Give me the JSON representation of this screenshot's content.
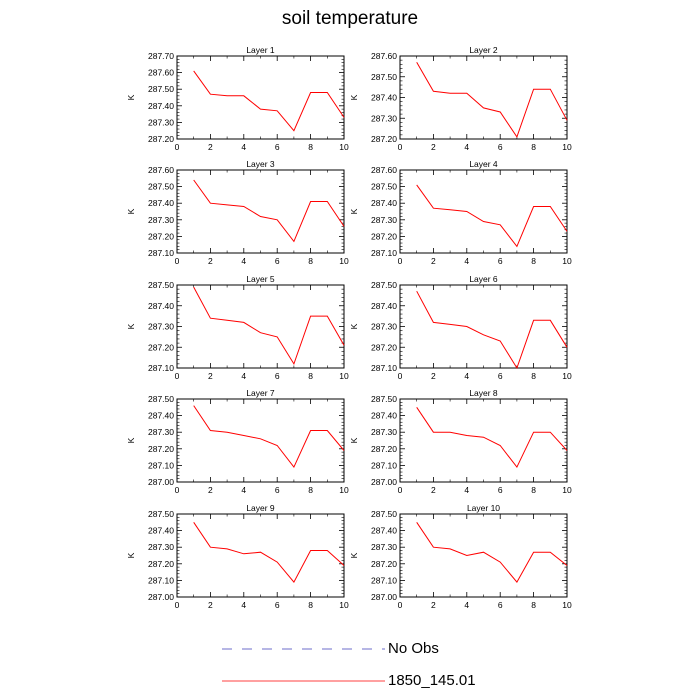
{
  "title": "soil temperature",
  "legend": {
    "items": [
      {
        "label": "No Obs",
        "color": "#3d3dbb",
        "style": "dashed"
      },
      {
        "label": "1850_145.01",
        "color": "#ff0000",
        "style": "solid"
      }
    ]
  },
  "chart_data": [
    {
      "type": "line",
      "title": "Layer 1",
      "ylabel": "K",
      "xlim": [
        0,
        10
      ],
      "ylim": [
        287.2,
        287.7
      ],
      "xticks": [
        "0",
        "2",
        "4",
        "6",
        "8",
        "10"
      ],
      "yticks": [
        "287.20",
        "287.30",
        "287.40",
        "287.50",
        "287.60",
        "287.70"
      ],
      "x": [
        1,
        2,
        3,
        4,
        5,
        6,
        7,
        8,
        9,
        10
      ],
      "series": [
        {
          "name": "1850_145.01",
          "color": "#ff0000",
          "values": [
            287.61,
            287.47,
            287.46,
            287.46,
            287.38,
            287.37,
            287.25,
            287.48,
            287.48,
            287.33
          ]
        }
      ]
    },
    {
      "type": "line",
      "title": "Layer 2",
      "ylabel": "K",
      "xlim": [
        0,
        10
      ],
      "ylim": [
        287.2,
        287.6
      ],
      "xticks": [
        "0",
        "2",
        "4",
        "6",
        "8",
        "10"
      ],
      "yticks": [
        "287.20",
        "287.30",
        "287.40",
        "287.50",
        "287.60"
      ],
      "x": [
        1,
        2,
        3,
        4,
        5,
        6,
        7,
        8,
        9,
        10
      ],
      "series": [
        {
          "name": "1850_145.01",
          "color": "#ff0000",
          "values": [
            287.57,
            287.43,
            287.42,
            287.42,
            287.35,
            287.33,
            287.21,
            287.44,
            287.44,
            287.29
          ]
        }
      ]
    },
    {
      "type": "line",
      "title": "Layer 3",
      "ylabel": "K",
      "xlim": [
        0,
        10
      ],
      "ylim": [
        287.1,
        287.6
      ],
      "xticks": [
        "0",
        "2",
        "4",
        "6",
        "8",
        "10"
      ],
      "yticks": [
        "287.10",
        "287.20",
        "287.30",
        "287.40",
        "287.50",
        "287.60"
      ],
      "x": [
        1,
        2,
        3,
        4,
        5,
        6,
        7,
        8,
        9,
        10
      ],
      "series": [
        {
          "name": "1850_145.01",
          "color": "#ff0000",
          "values": [
            287.54,
            287.4,
            287.39,
            287.38,
            287.32,
            287.3,
            287.17,
            287.41,
            287.41,
            287.26
          ]
        }
      ]
    },
    {
      "type": "line",
      "title": "Layer 4",
      "ylabel": "K",
      "xlim": [
        0,
        10
      ],
      "ylim": [
        287.1,
        287.6
      ],
      "xticks": [
        "0",
        "2",
        "4",
        "6",
        "8",
        "10"
      ],
      "yticks": [
        "287.10",
        "287.20",
        "287.30",
        "287.40",
        "287.50",
        "287.60"
      ],
      "x": [
        1,
        2,
        3,
        4,
        5,
        6,
        7,
        8,
        9,
        10
      ],
      "series": [
        {
          "name": "1850_145.01",
          "color": "#ff0000",
          "values": [
            287.51,
            287.37,
            287.36,
            287.35,
            287.29,
            287.27,
            287.14,
            287.38,
            287.38,
            287.23
          ]
        }
      ]
    },
    {
      "type": "line",
      "title": "Layer 5",
      "ylabel": "K",
      "xlim": [
        0,
        10
      ],
      "ylim": [
        287.1,
        287.5
      ],
      "xticks": [
        "0",
        "2",
        "4",
        "6",
        "8",
        "10"
      ],
      "yticks": [
        "287.10",
        "287.20",
        "287.30",
        "287.40",
        "287.50"
      ],
      "x": [
        1,
        2,
        3,
        4,
        5,
        6,
        7,
        8,
        9,
        10
      ],
      "series": [
        {
          "name": "1850_145.01",
          "color": "#ff0000",
          "values": [
            287.49,
            287.34,
            287.33,
            287.32,
            287.27,
            287.25,
            287.12,
            287.35,
            287.35,
            287.21
          ]
        }
      ]
    },
    {
      "type": "line",
      "title": "Layer 6",
      "ylabel": "K",
      "xlim": [
        0,
        10
      ],
      "ylim": [
        287.1,
        287.5
      ],
      "xticks": [
        "0",
        "2",
        "4",
        "6",
        "8",
        "10"
      ],
      "yticks": [
        "287.10",
        "287.20",
        "287.30",
        "287.40",
        "287.50"
      ],
      "x": [
        1,
        2,
        3,
        4,
        5,
        6,
        7,
        8,
        9,
        10
      ],
      "series": [
        {
          "name": "1850_145.01",
          "color": "#ff0000",
          "values": [
            287.47,
            287.32,
            287.31,
            287.3,
            287.26,
            287.23,
            287.1,
            287.33,
            287.33,
            287.2
          ]
        }
      ]
    },
    {
      "type": "line",
      "title": "Layer 7",
      "ylabel": "K",
      "xlim": [
        0,
        10
      ],
      "ylim": [
        287.0,
        287.5
      ],
      "xticks": [
        "0",
        "2",
        "4",
        "6",
        "8",
        "10"
      ],
      "yticks": [
        "287.00",
        "287.10",
        "287.20",
        "287.30",
        "287.40",
        "287.50"
      ],
      "x": [
        1,
        2,
        3,
        4,
        5,
        6,
        7,
        8,
        9,
        10
      ],
      "series": [
        {
          "name": "1850_145.01",
          "color": "#ff0000",
          "values": [
            287.46,
            287.31,
            287.3,
            287.28,
            287.26,
            287.22,
            287.09,
            287.31,
            287.31,
            287.19
          ]
        }
      ]
    },
    {
      "type": "line",
      "title": "Layer 8",
      "ylabel": "K",
      "xlim": [
        0,
        10
      ],
      "ylim": [
        287.0,
        287.5
      ],
      "xticks": [
        "0",
        "2",
        "4",
        "6",
        "8",
        "10"
      ],
      "yticks": [
        "287.00",
        "287.10",
        "287.20",
        "287.30",
        "287.40",
        "287.50"
      ],
      "x": [
        1,
        2,
        3,
        4,
        5,
        6,
        7,
        8,
        9,
        10
      ],
      "series": [
        {
          "name": "1850_145.01",
          "color": "#ff0000",
          "values": [
            287.45,
            287.3,
            287.3,
            287.28,
            287.27,
            287.22,
            287.09,
            287.3,
            287.3,
            287.19
          ]
        }
      ]
    },
    {
      "type": "line",
      "title": "Layer 9",
      "ylabel": "K",
      "xlim": [
        0,
        10
      ],
      "ylim": [
        287.0,
        287.5
      ],
      "xticks": [
        "0",
        "2",
        "4",
        "6",
        "8",
        "10"
      ],
      "yticks": [
        "287.00",
        "287.10",
        "287.20",
        "287.30",
        "287.40",
        "287.50"
      ],
      "x": [
        1,
        2,
        3,
        4,
        5,
        6,
        7,
        8,
        9,
        10
      ],
      "series": [
        {
          "name": "1850_145.01",
          "color": "#ff0000",
          "values": [
            287.45,
            287.3,
            287.29,
            287.26,
            287.27,
            287.21,
            287.09,
            287.28,
            287.28,
            287.19
          ]
        }
      ]
    },
    {
      "type": "line",
      "title": "Layer 10",
      "ylabel": "K",
      "xlim": [
        0,
        10
      ],
      "ylim": [
        287.0,
        287.5
      ],
      "xticks": [
        "0",
        "2",
        "4",
        "6",
        "8",
        "10"
      ],
      "yticks": [
        "287.00",
        "287.10",
        "287.20",
        "287.30",
        "287.40",
        "287.50"
      ],
      "x": [
        1,
        2,
        3,
        4,
        5,
        6,
        7,
        8,
        9,
        10
      ],
      "series": [
        {
          "name": "1850_145.01",
          "color": "#ff0000",
          "values": [
            287.45,
            287.3,
            287.29,
            287.25,
            287.27,
            287.21,
            287.09,
            287.27,
            287.27,
            287.19
          ]
        }
      ]
    }
  ]
}
